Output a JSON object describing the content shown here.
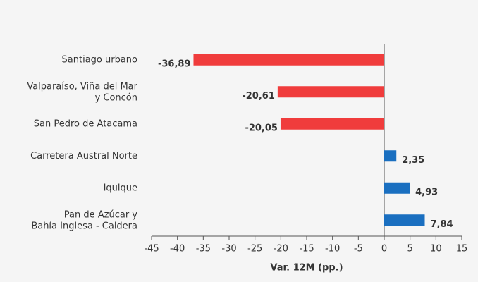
{
  "chart_data": {
    "type": "hbar",
    "categories": [
      "Santiago urbano",
      "Valparaíso, Viña del Mar\ny Concón",
      "San Pedro de Atacama",
      "Carretera Austral Norte",
      "Iquique",
      "Pan de Azúcar y\nBahía Inglesa - Caldera"
    ],
    "values": [
      -36.89,
      -20.61,
      -20.05,
      2.35,
      4.93,
      7.84
    ],
    "value_labels": [
      "-36,89",
      "-20,61",
      "-20,05",
      "2,35",
      "4,93",
      "7,84"
    ],
    "colors": [
      "#f03c3c",
      "#f03c3c",
      "#f03c3c",
      "#1a6fc0",
      "#1a6fc0",
      "#1a6fc0"
    ],
    "xlabel": "Var. 12M (pp.)",
    "xlim": [
      -45,
      15
    ],
    "xticks": [
      -45,
      -40,
      -35,
      -30,
      -25,
      -20,
      -15,
      -10,
      -5,
      0,
      5,
      10,
      15
    ]
  }
}
